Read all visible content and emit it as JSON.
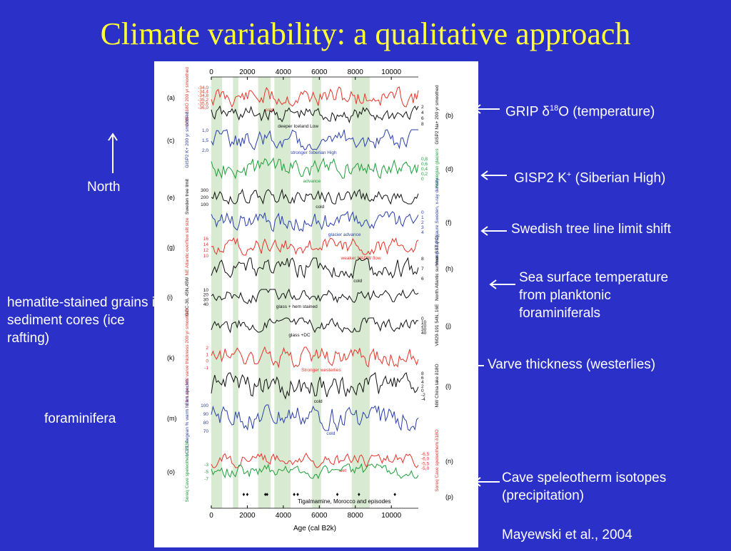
{
  "slide": {
    "title": "Climate variability: a qualitative approach",
    "north_label": "North",
    "citation": "Mayewski et al., 2004"
  },
  "annotations": {
    "grip": "GRIP δ18O (temperature)",
    "gisp2": "GISP2 K+ (Siberian High)",
    "tree": "Swedish tree line limit shift",
    "sst_line1": "Sea surface temperature",
    "sst_line2": "from planktonic",
    "sst_line3": "foraminiferals",
    "hematite_line1": "hematite-stained grains in",
    "hematite_line2": "sediment cores (ice",
    "hematite_line3": "rafting)",
    "varve": "Varve thickness (westerlies)",
    "foraminifera": "foraminifera",
    "cave_line1": "Cave speleotherm isotopes",
    "cave_line2": "(precipitation)"
  },
  "colors": {
    "background": "#2a30c8",
    "title": "#ffff33",
    "red": "#e8332a",
    "black": "#111111",
    "blue": "#2b3fa8",
    "green": "#1f9e3a",
    "light_blue": "#6fa8dc",
    "band": "#d9ead3"
  },
  "chart_data": {
    "type": "line",
    "xlabel": "Age (cal  B2k)",
    "x_ticks": [
      "0",
      "2000",
      "4000",
      "6000",
      "8000",
      "10000"
    ],
    "xlim": [
      0,
      11500
    ],
    "green_bands_age": [
      [
        0,
        600
      ],
      [
        1200,
        1500
      ],
      [
        2600,
        3300
      ],
      [
        3500,
        4400
      ],
      [
        5600,
        6100
      ],
      [
        7800,
        8800
      ]
    ],
    "panels": [
      {
        "id": "(a)",
        "label": "GRIP δ18O 200 yr smoothed",
        "color": "red",
        "ticks": [
          "-34,0",
          "-34,4",
          "-34,8",
          "-35,2",
          "-35,6",
          "-36,0"
        ],
        "note": "cold"
      },
      {
        "id": "(b)",
        "label": "GISP2 Na+ 200 yr smoothed",
        "color": "black",
        "ticks": [
          "2",
          "4",
          "6",
          "8"
        ],
        "note": "deeper Iceland Low"
      },
      {
        "id": "(c)",
        "label": "GISP2 K+ 200 yr smoothed",
        "color": "blue",
        "ticks": [
          "1,0",
          "1,5",
          "2,0"
        ],
        "note": "stronger Siberian High"
      },
      {
        "id": "(d)",
        "label": "Norwegian glaciers",
        "color": "green",
        "ticks": [
          "0,8",
          "0,6",
          "0,4",
          "0,2",
          "0"
        ],
        "note": "advance"
      },
      {
        "id": "(e)",
        "label": "Sweden tree limit",
        "color": "black",
        "ticks": [
          "300",
          "200",
          "100"
        ],
        "note": "cold"
      },
      {
        "id": "(f)",
        "label": "Vuolep Allakasjaure Sweden, x-ray density",
        "color": "blue",
        "ticks": [
          "0",
          "1",
          "2",
          "3",
          "4"
        ],
        "note": "glacier advance"
      },
      {
        "id": "(g)",
        "label": "NE Atlantic overflow silt size",
        "color": "red",
        "ticks": [
          "16",
          "14",
          "12",
          "10"
        ],
        "note": "weaker NADW flow"
      },
      {
        "id": "(h)",
        "label": "North Atlantic summer SST (°C)",
        "color": "black",
        "ticks": [
          "8",
          "7",
          "6"
        ],
        "note": "cold"
      },
      {
        "id": "(i)",
        "label": "GGC-36, 45N,45W",
        "color": "black",
        "ticks": [
          "10",
          "20",
          "30",
          "40"
        ],
        "note": "glass + hem stained"
      },
      {
        "id": "(j)",
        "label": "VM29-191 54N, 16E",
        "color": "black",
        "ticks": [
          "0",
          "10",
          "20",
          "30",
          "40"
        ],
        "note": "glass +DC"
      },
      {
        "id": "(k)",
        "label": "Elk Lake, MN varve thickness 200 yr smoothed",
        "color": "red",
        "ticks": [
          "2",
          "1",
          "0",
          "-1"
        ],
        "note": "Stronger westerlies"
      },
      {
        "id": "(l)",
        "label": "NW China lake δ18O",
        "color": "black",
        "ticks": [
          "8",
          "6",
          "4",
          "2",
          "0",
          "-2",
          "-4"
        ],
        "note": "cold"
      },
      {
        "id": "(m)",
        "label": "LC21, Aegean % warm foram species",
        "color": "blue",
        "ticks": [
          "100",
          "90",
          "80",
          "70"
        ],
        "note": "cold"
      },
      {
        "id": "(n)",
        "label": "Soreq Cave speleothem δ18O",
        "color": "red",
        "ticks": [
          "-6,5",
          "-6,0",
          "-5,5",
          "-5,0"
        ],
        "note": "wet"
      },
      {
        "id": "(o)",
        "label": "Soreq Cave speleothem δ13C",
        "color": "green",
        "ticks": [
          "-3",
          "-5",
          "-7"
        ],
        "note": ""
      },
      {
        "id": "(p)",
        "label": "Tigalmamine, Morocco arid episodes",
        "color": "black",
        "ticks": [],
        "note": "Tigalmamine, Morocco and episodes"
      }
    ]
  }
}
